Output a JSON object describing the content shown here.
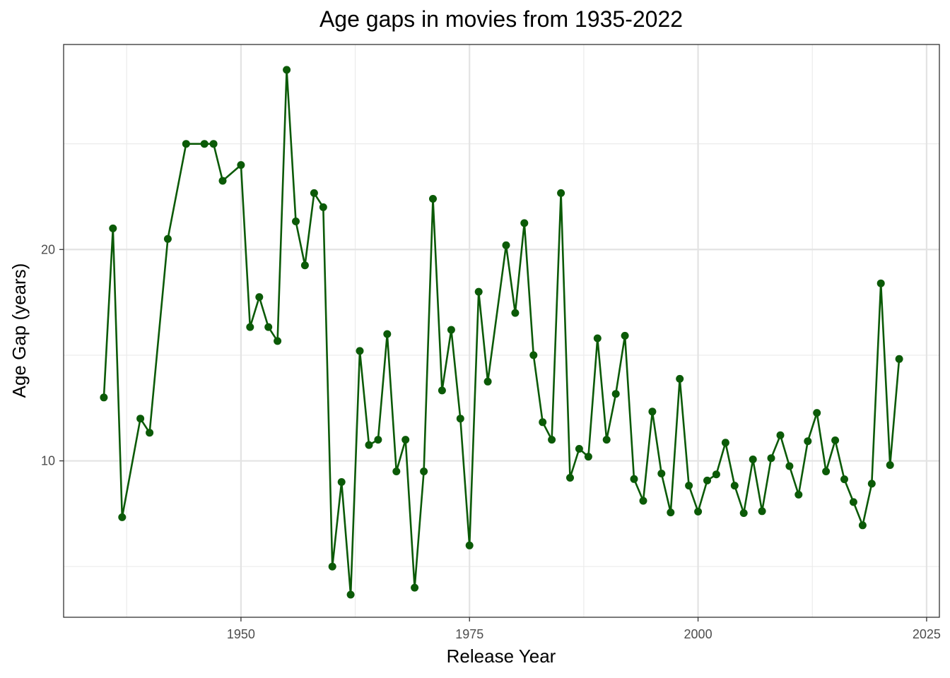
{
  "chart_data": {
    "type": "line",
    "title": "Age gaps in movies from 1935-2022",
    "xlabel": "Release Year",
    "ylabel": "Age Gap (years)",
    "xlim": [
      1930.6,
      2026.4
    ],
    "ylim": [
      2.6,
      29.7
    ],
    "x_ticks": [
      1950,
      1975,
      2000,
      2025
    ],
    "y_ticks": [
      10,
      20
    ],
    "x_minor_ticks": [
      1937.5,
      1962.5,
      1987.5,
      2012.5
    ],
    "y_minor_ticks": [
      5,
      15,
      25
    ],
    "grid": true,
    "line_color": "#0B5A07",
    "series": [
      {
        "x": [
          1935,
          1936,
          1937,
          1939,
          1940,
          1942,
          1944,
          1946,
          1947,
          1948,
          1950,
          1951,
          1952,
          1953,
          1954,
          1955,
          1956,
          1957,
          1958,
          1959,
          1960,
          1961,
          1962,
          1963,
          1964,
          1965,
          1966,
          1967,
          1968,
          1969,
          1970,
          1971,
          1972,
          1973,
          1974,
          1975,
          1976,
          1977,
          1979,
          1980,
          1981,
          1982,
          1983,
          1984,
          1985,
          1986,
          1987,
          1988,
          1989,
          1990,
          1991,
          1992,
          1993,
          1994,
          1995,
          1996,
          1997,
          1998,
          1999,
          2000,
          2001,
          2002,
          2003,
          2004,
          2005,
          2006,
          2007,
          2008,
          2009,
          2010,
          2011,
          2012,
          2013,
          2014,
          2015,
          2016,
          2017,
          2018,
          2019,
          2020,
          2021,
          2022
        ],
        "y": [
          13.0,
          21.0,
          7.33,
          12.0,
          11.33,
          20.5,
          25.0,
          25.0,
          25.0,
          23.25,
          24.0,
          16.33,
          17.75,
          16.33,
          15.67,
          28.5,
          21.33,
          19.25,
          22.67,
          22.0,
          5.0,
          9.0,
          3.67,
          15.2,
          10.75,
          11.0,
          16.0,
          9.5,
          11.0,
          4.0,
          9.5,
          22.4,
          13.33,
          16.2,
          12.0,
          6.0,
          18.0,
          13.75,
          20.2,
          17.0,
          21.25,
          15.0,
          11.83,
          11.0,
          22.67,
          9.2,
          10.57,
          10.2,
          15.8,
          11.0,
          13.17,
          15.92,
          9.14,
          8.11,
          12.33,
          9.4,
          7.56,
          13.88,
          8.83,
          7.6,
          9.07,
          9.36,
          10.86,
          8.83,
          7.53,
          10.07,
          7.62,
          10.13,
          11.21,
          9.75,
          8.4,
          10.93,
          12.27,
          9.5,
          10.97,
          9.13,
          8.05,
          6.95,
          8.92,
          18.4,
          9.8,
          14.82
        ]
      }
    ]
  }
}
